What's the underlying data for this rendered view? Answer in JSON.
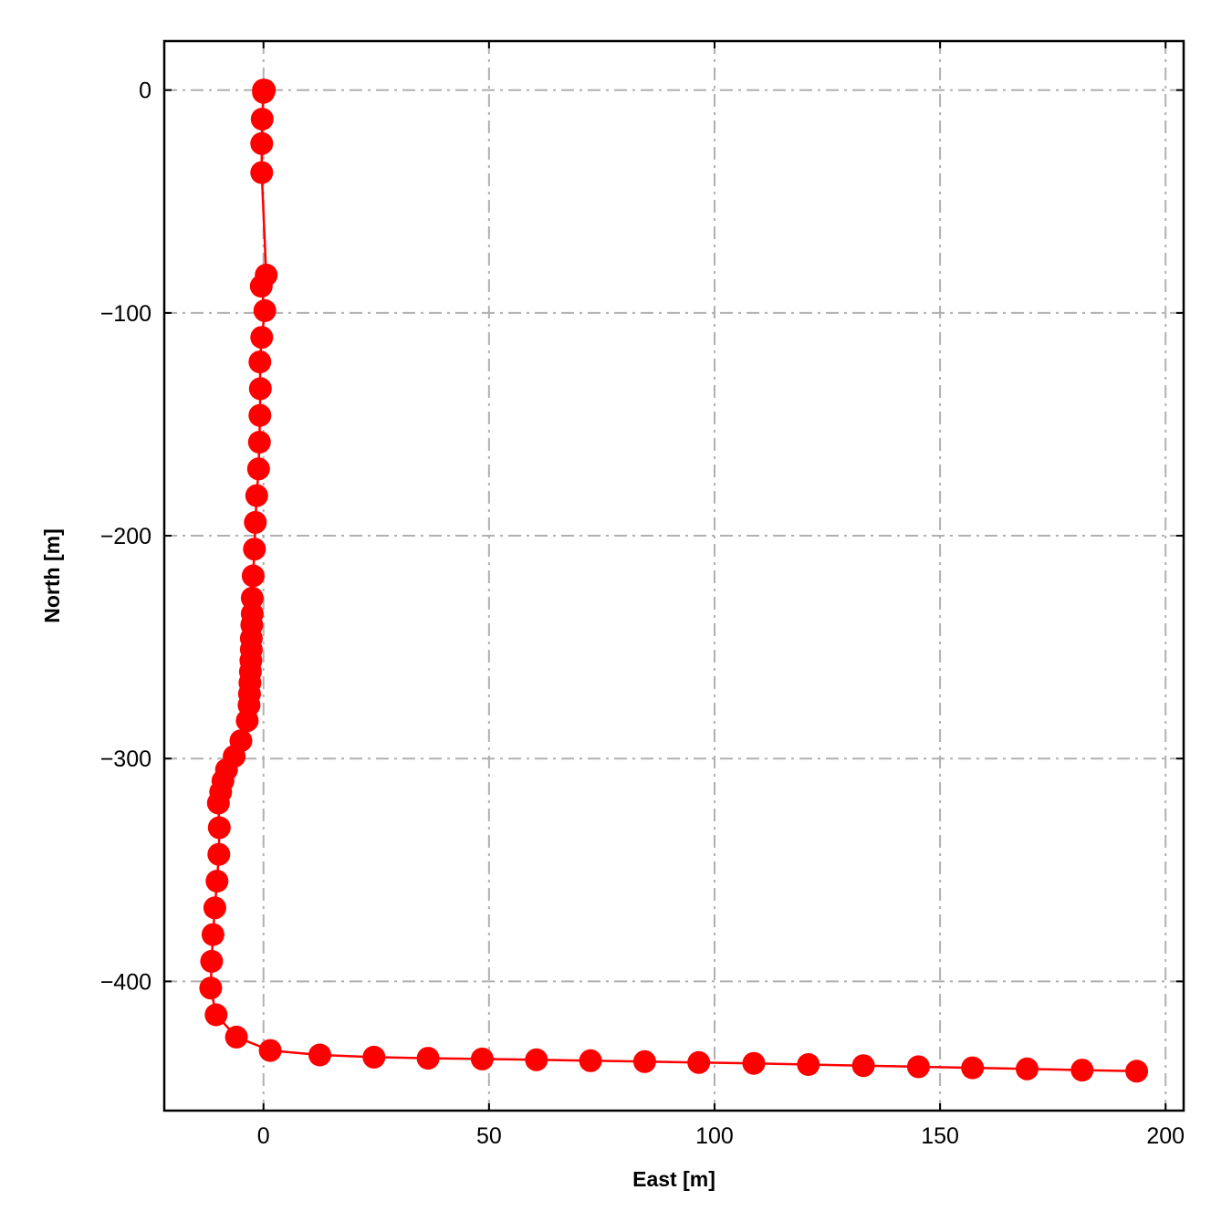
{
  "chart_data": {
    "type": "line",
    "xlabel": "East [m]",
    "ylabel": "North [m]",
    "xlim": [
      -22,
      204
    ],
    "ylim": [
      -458,
      22
    ],
    "x_ticks": [
      0,
      50,
      100,
      150,
      200
    ],
    "y_ticks": [
      0,
      -100,
      -200,
      -300,
      -400
    ],
    "x_tick_labels": [
      "0",
      "50",
      "100",
      "150",
      "200"
    ],
    "y_tick_labels": [
      "0",
      "−100",
      "−200",
      "−300",
      "−400"
    ],
    "grid": true,
    "legend": "none",
    "series": [
      {
        "color": "#ff0000",
        "marker": "circle",
        "points": [
          [
            0,
            0
          ],
          [
            0.2,
            0
          ],
          [
            0,
            -1
          ],
          [
            -0.3,
            -13
          ],
          [
            -0.4,
            -24
          ],
          [
            -0.4,
            -37
          ],
          [
            0.6,
            -83
          ],
          [
            -0.5,
            -88
          ],
          [
            0.3,
            -99
          ],
          [
            -0.4,
            -111
          ],
          [
            -0.8,
            -122
          ],
          [
            -0.7,
            -134
          ],
          [
            -0.8,
            -146
          ],
          [
            -0.9,
            -158
          ],
          [
            -1.1,
            -170
          ],
          [
            -1.5,
            -182
          ],
          [
            -1.8,
            -194
          ],
          [
            -2.0,
            -206
          ],
          [
            -2.3,
            -218
          ],
          [
            -2.5,
            -228
          ],
          [
            -2.5,
            -235
          ],
          [
            -2.6,
            -240
          ],
          [
            -2.7,
            -246
          ],
          [
            -2.7,
            -251
          ],
          [
            -2.8,
            -256
          ],
          [
            -2.9,
            -261
          ],
          [
            -3.0,
            -266
          ],
          [
            -3.1,
            -271
          ],
          [
            -3.2,
            -276
          ],
          [
            -3.6,
            -283
          ],
          [
            -5.0,
            -292
          ],
          [
            -6.5,
            -299
          ],
          [
            -8.2,
            -305
          ],
          [
            -9.0,
            -310
          ],
          [
            -9.5,
            -315
          ],
          [
            -10.0,
            -320
          ],
          [
            -9.8,
            -331
          ],
          [
            -9.9,
            -343
          ],
          [
            -10.3,
            -355
          ],
          [
            -10.8,
            -367
          ],
          [
            -11.2,
            -379
          ],
          [
            -11.5,
            -391
          ],
          [
            -11.7,
            -403
          ],
          [
            -10.5,
            -415
          ],
          [
            -6.0,
            -425
          ],
          [
            1.5,
            -431
          ],
          [
            12.5,
            -433
          ],
          [
            24.5,
            -434
          ],
          [
            36.5,
            -434.5
          ],
          [
            48.5,
            -434.8
          ],
          [
            60.5,
            -435.2
          ],
          [
            72.5,
            -435.6
          ],
          [
            84.5,
            -436
          ],
          [
            96.5,
            -436.4
          ],
          [
            108.7,
            -436.8
          ],
          [
            120.8,
            -437.3
          ],
          [
            133,
            -437.8
          ],
          [
            145.2,
            -438.3
          ],
          [
            157.2,
            -438.8
          ],
          [
            169.3,
            -439.3
          ],
          [
            181.5,
            -439.8
          ],
          [
            193.6,
            -440.3
          ]
        ]
      }
    ]
  }
}
